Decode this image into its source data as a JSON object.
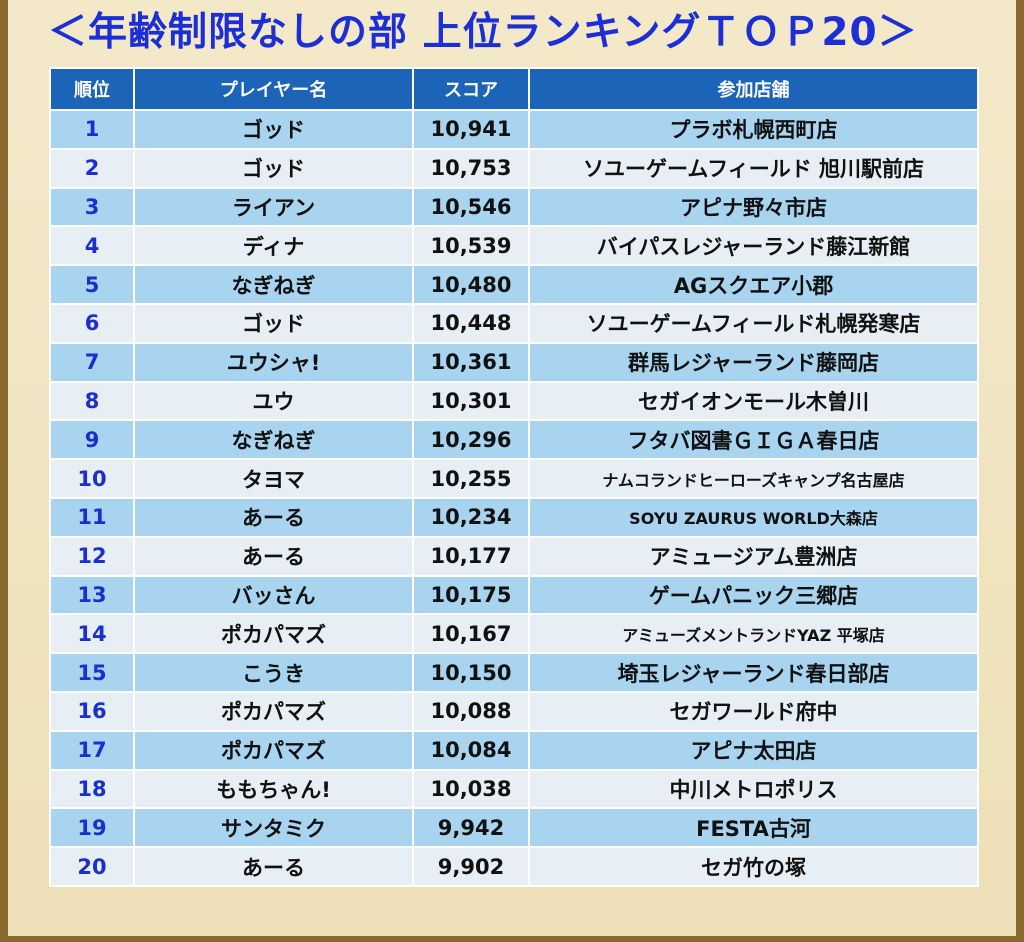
{
  "title": "＜年齢制限なしの部 上位ランキングＴＯＰ20＞",
  "header": {
    "rank": "順位",
    "player": "プレイヤー名",
    "score": "スコア",
    "store": "参加店舗"
  },
  "colors": {
    "title": "#1c2fd6",
    "header_bg": "#1c64b8",
    "row_odd": "#a9d4f0",
    "row_even": "#e7eef4",
    "rank_text": "#1a2fd0",
    "frame": "#8a6a2e",
    "background": "#efe3c0"
  },
  "rows": [
    {
      "rank": "1",
      "player": "ゴッド",
      "score": "10,941",
      "store": "プラボ札幌西町店"
    },
    {
      "rank": "2",
      "player": "ゴッド",
      "score": "10,753",
      "store": "ソユーゲームフィールド 旭川駅前店"
    },
    {
      "rank": "3",
      "player": "ライアン",
      "score": "10,546",
      "store": "アピナ野々市店"
    },
    {
      "rank": "4",
      "player": "ディナ",
      "score": "10,539",
      "store": "バイパスレジャーランド藤江新館"
    },
    {
      "rank": "5",
      "player": "なぎねぎ",
      "score": "10,480",
      "store": "AGスクエア小郡"
    },
    {
      "rank": "6",
      "player": "ゴッド",
      "score": "10,448",
      "store": "ソユーゲームフィールド札幌発寒店"
    },
    {
      "rank": "7",
      "player": "ユウシャ!",
      "score": "10,361",
      "store": "群馬レジャーランド藤岡店"
    },
    {
      "rank": "8",
      "player": "ユウ",
      "score": "10,301",
      "store": "セガイオンモール木曽川"
    },
    {
      "rank": "9",
      "player": "なぎねぎ",
      "score": "10,296",
      "store": "フタバ図書ＧＩＧＡ春日店"
    },
    {
      "rank": "10",
      "player": "タヨマ",
      "score": "10,255",
      "store": "ナムコランドヒーローズキャンプ名古屋店"
    },
    {
      "rank": "11",
      "player": "あーる",
      "score": "10,234",
      "store": "SOYU ZAURUS WORLD大森店"
    },
    {
      "rank": "12",
      "player": "あーる",
      "score": "10,177",
      "store": "アミュージアム豊洲店"
    },
    {
      "rank": "13",
      "player": "バッさん",
      "score": "10,175",
      "store": "ゲームパニック三郷店"
    },
    {
      "rank": "14",
      "player": "ポカパマズ",
      "score": "10,167",
      "store": "アミューズメントランドYAZ 平塚店"
    },
    {
      "rank": "15",
      "player": "こうき",
      "score": "10,150",
      "store": "埼玉レジャーランド春日部店"
    },
    {
      "rank": "16",
      "player": "ポカパマズ",
      "score": "10,088",
      "store": "セガワールド府中"
    },
    {
      "rank": "17",
      "player": "ポカパマズ",
      "score": "10,084",
      "store": "アピナ太田店"
    },
    {
      "rank": "18",
      "player": "ももちゃん!",
      "score": "10,038",
      "store": "中川メトロポリス"
    },
    {
      "rank": "19",
      "player": "サンタミク",
      "score": "9,942",
      "store": "FESTA古河"
    },
    {
      "rank": "20",
      "player": "あーる",
      "score": "9,902",
      "store": "セガ竹の塚"
    }
  ]
}
